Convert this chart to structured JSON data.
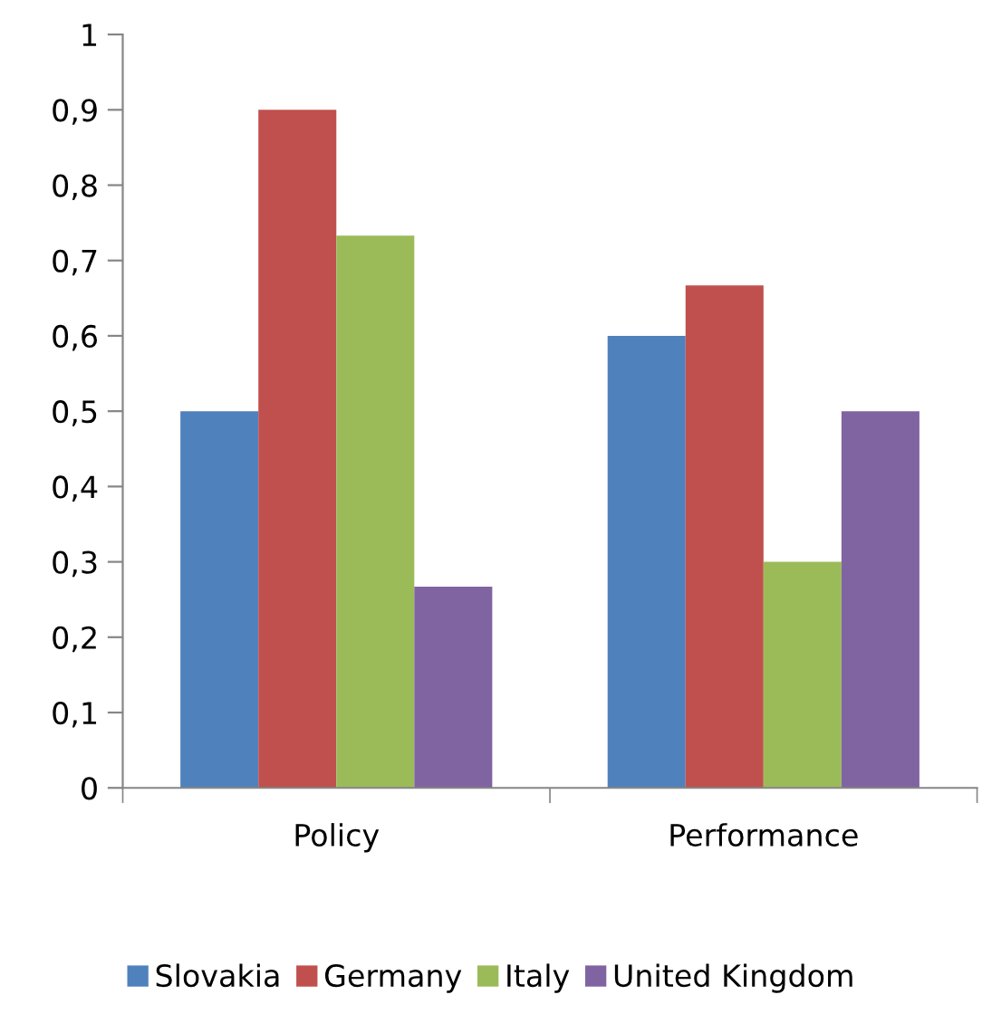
{
  "chart_data": {
    "type": "bar",
    "categories": [
      "Policy",
      "Performance"
    ],
    "series": [
      {
        "name": "Slovakia",
        "color": "#4f81bd",
        "values": [
          0.5,
          0.6
        ]
      },
      {
        "name": "Germany",
        "color": "#c0504d",
        "values": [
          0.9,
          0.667
        ]
      },
      {
        "name": "Italy",
        "color": "#9bbb59",
        "values": [
          0.733,
          0.3
        ]
      },
      {
        "name": "United Kingdom",
        "color": "#8064a2",
        "values": [
          0.267,
          0.5
        ]
      }
    ],
    "ylim": [
      0,
      1
    ],
    "yticks": [
      0,
      {
        "value": 0.1,
        "label": "0,1"
      },
      {
        "value": 0.2,
        "label": "0,2"
      },
      {
        "value": 0.3,
        "label": "0,3"
      },
      {
        "value": 0.4,
        "label": "0,4"
      },
      {
        "value": 0.5,
        "label": "0,5"
      },
      {
        "value": 0.6,
        "label": "0,6"
      },
      {
        "value": 0.7,
        "label": "0,7"
      },
      {
        "value": 0.8,
        "label": "0,8"
      },
      {
        "value": 0.9,
        "label": "0,9"
      },
      1
    ],
    "grid": false,
    "legend": "bottom"
  }
}
